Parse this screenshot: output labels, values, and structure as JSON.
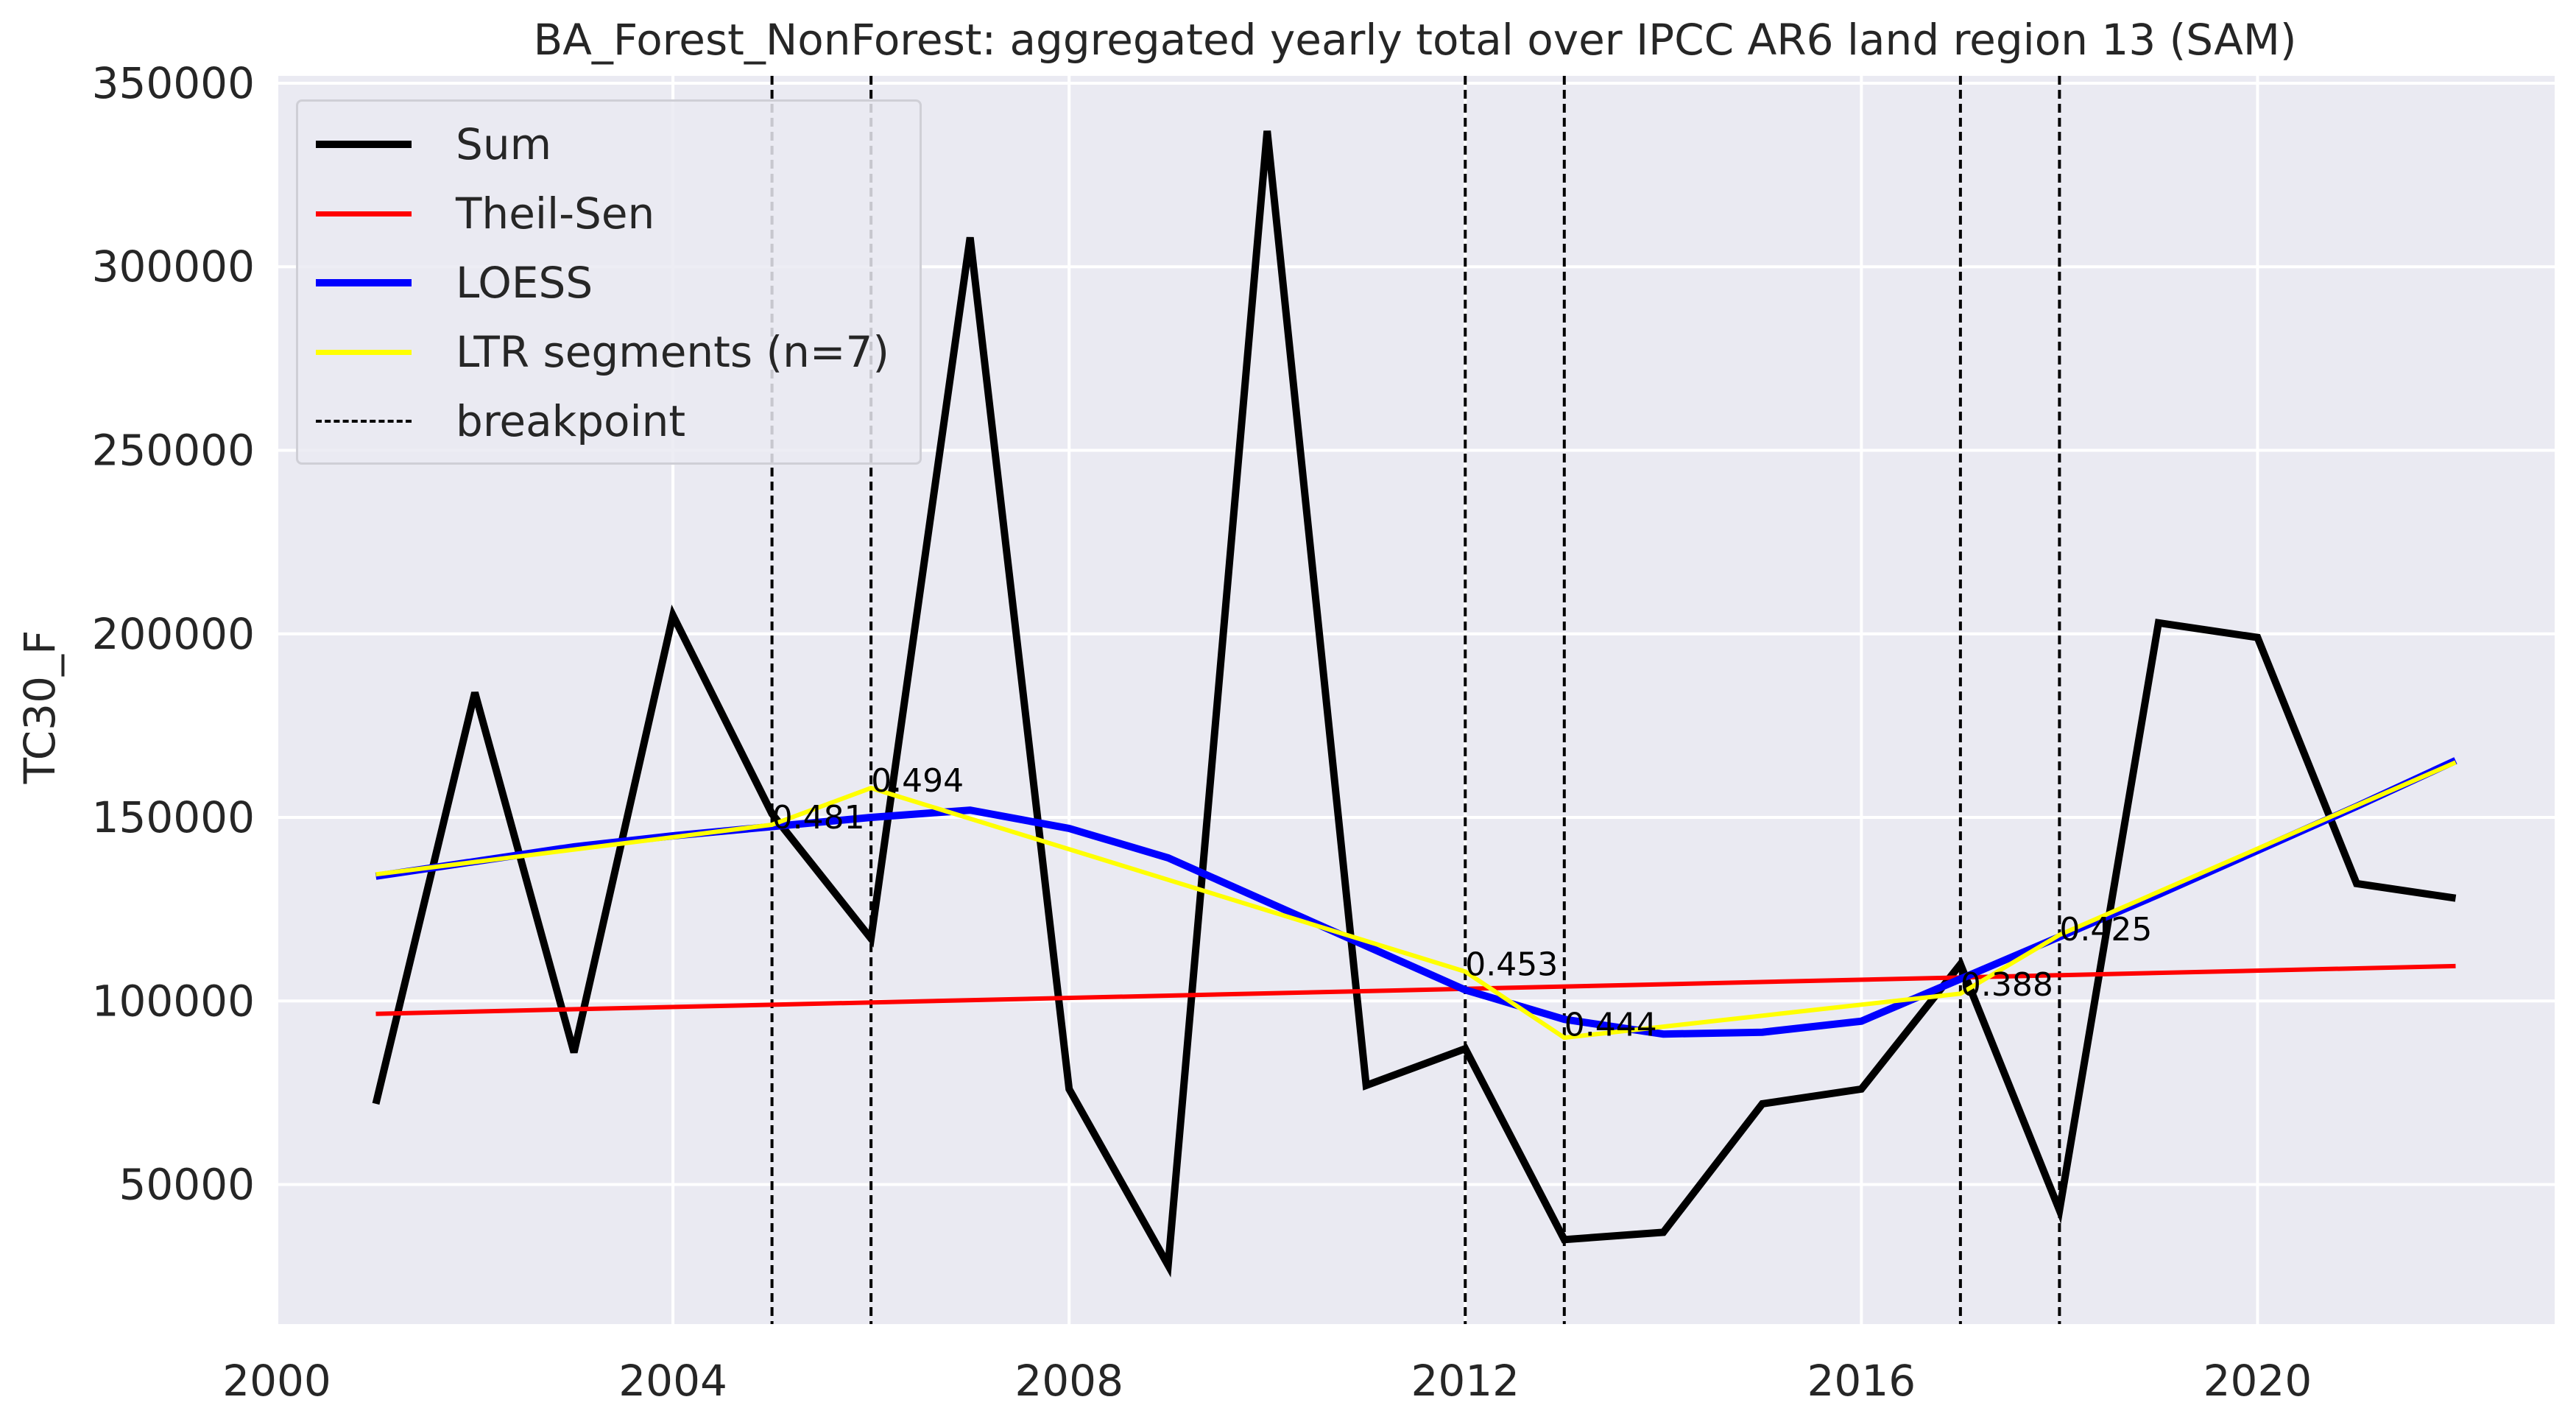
{
  "chart_data": {
    "type": "line",
    "title": "BA_Forest_NonForest: aggregated yearly total over IPCC AR6 land region 13 (SAM)",
    "xlabel": "",
    "ylabel": "TC30_F",
    "xlim": [
      2000,
      2023
    ],
    "ylim": [
      12000,
      352000
    ],
    "x_ticks": [
      2000,
      2004,
      2008,
      2012,
      2016,
      2020
    ],
    "y_ticks": [
      50000,
      100000,
      150000,
      200000,
      250000,
      300000,
      350000
    ],
    "grid": true,
    "legend_position": "top-left",
    "x": [
      2001,
      2002,
      2003,
      2004,
      2005,
      2006,
      2007,
      2008,
      2009,
      2010,
      2011,
      2012,
      2013,
      2014,
      2015,
      2016,
      2017,
      2018,
      2019,
      2020,
      2021,
      2022
    ],
    "series": [
      {
        "name": "Sum",
        "color": "#000000",
        "values": [
          72000,
          184000,
          86000,
          205000,
          151000,
          117000,
          308000,
          76000,
          28000,
          337000,
          77000,
          87000,
          35000,
          37000,
          72000,
          76000,
          110000,
          43000,
          203000,
          199000,
          132000,
          128000
        ]
      },
      {
        "name": "Theil-Sen",
        "color": "#ff0000",
        "x": [
          2001,
          2022
        ],
        "values": [
          96500,
          109500
        ]
      },
      {
        "name": "LOESS",
        "color": "#0000ff",
        "values": [
          134000,
          138000,
          142000,
          145000,
          147500,
          150000,
          152000,
          147000,
          139000,
          127000,
          115000,
          103000,
          95000,
          91000,
          91500,
          94500,
          106000,
          117500,
          129000,
          141000,
          153000,
          165500
        ]
      },
      {
        "name": "LTR segments (n=7)",
        "color": "#ffff00",
        "x": [
          2001,
          2005,
          2006,
          2012,
          2013,
          2017,
          2018,
          2022
        ],
        "values": [
          134500,
          148000,
          158000,
          108000,
          90000,
          102000,
          118000,
          165000
        ]
      }
    ],
    "breakpoints": {
      "name": "breakpoint",
      "color": "#000000",
      "x": [
        2005,
        2006,
        2012,
        2013,
        2017,
        2018
      ]
    },
    "annotations": [
      {
        "x": 2005,
        "y": 147000,
        "text": "0.481"
      },
      {
        "x": 2006,
        "y": 157000,
        "text": "0.494"
      },
      {
        "x": 2012,
        "y": 107000,
        "text": "0.453"
      },
      {
        "x": 2013,
        "y": 90500,
        "text": "0.444"
      },
      {
        "x": 2017,
        "y": 101500,
        "text": "0.388"
      },
      {
        "x": 2018,
        "y": 116500,
        "text": "0.425"
      }
    ]
  },
  "style": {
    "plot_background": "#eaeaf2",
    "grid_color": "#ffffff",
    "text_color": "#262626"
  }
}
